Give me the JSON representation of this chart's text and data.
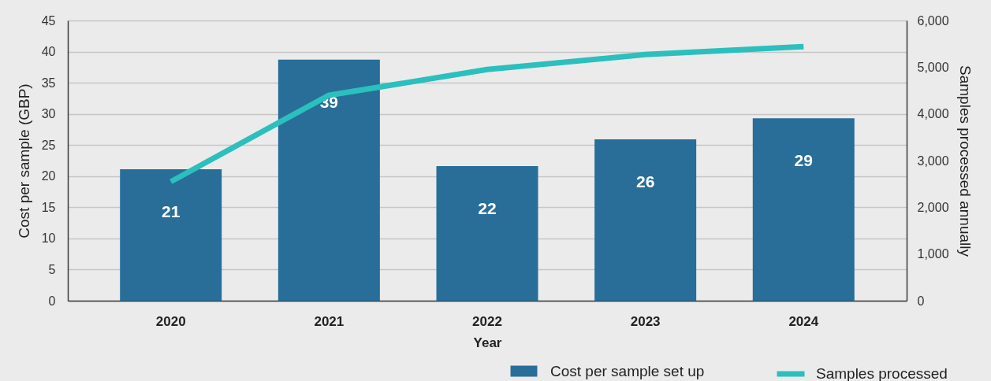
{
  "chart_data": {
    "type": "bar",
    "categories": [
      "2020",
      "2021",
      "2022",
      "2023",
      "2024"
    ],
    "xlabel": "Year",
    "ylabel": "Cost per sample (GBP)",
    "y2label": "Samples processed annually",
    "series": [
      {
        "name": "Cost per sample set up",
        "color": "#286e99",
        "values": [
          21.1,
          38.7,
          21.6,
          25.9,
          29.3
        ],
        "value_labels": [
          "21",
          "39",
          "22",
          "26",
          "29"
        ]
      },
      {
        "name": "Samples processed",
        "type": "line",
        "axis": "y2",
        "color": "#2bbfbd",
        "values": [
          2550,
          4400,
          4950,
          5270,
          5440
        ]
      }
    ],
    "ylim": [
      0,
      45
    ],
    "yticks": [
      0,
      5,
      10,
      15,
      20,
      25,
      30,
      35,
      40,
      45
    ],
    "y2lim": [
      0,
      6000
    ],
    "y2ticks": [
      0,
      {
        "value": 1000,
        "label": "1,000"
      },
      {
        "value": 2000,
        "label": "2,000"
      },
      {
        "value": 3000,
        "label": "3,000"
      },
      {
        "value": 4000,
        "label": "4,000"
      },
      {
        "value": 5000,
        "label": "5,000"
      },
      {
        "value": 6000,
        "label": "6,000"
      }
    ],
    "grid": "y",
    "legend": "bottom right"
  }
}
